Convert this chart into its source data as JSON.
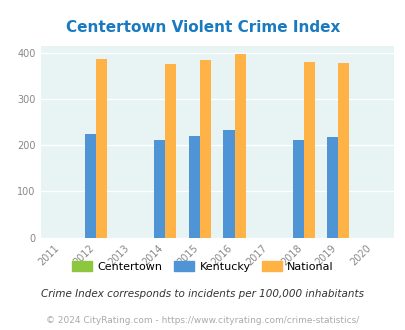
{
  "title": "Centertown Violent Crime Index",
  "all_years": [
    2011,
    2012,
    2013,
    2014,
    2015,
    2016,
    2017,
    2018,
    2019,
    2020
  ],
  "data_years": [
    2012,
    2014,
    2015,
    2016,
    2018,
    2019
  ],
  "centertown": [
    0,
    0,
    0,
    0,
    0,
    0
  ],
  "kentucky": [
    225,
    212,
    221,
    234,
    212,
    218
  ],
  "national": [
    387,
    377,
    385,
    398,
    381,
    378
  ],
  "bar_width": 0.32,
  "color_centertown": "#8dc63f",
  "color_kentucky": "#4f94d4",
  "color_national": "#ffb347",
  "bg_color": "#e8f4f4",
  "title_color": "#1a7abf",
  "ylim": [
    0,
    415
  ],
  "yticks": [
    0,
    100,
    200,
    300,
    400
  ],
  "subtitle": "Crime Index corresponds to incidents per 100,000 inhabitants",
  "footer": "© 2024 CityRating.com - https://www.cityrating.com/crime-statistics/",
  "title_fontsize": 11,
  "tick_fontsize": 7,
  "legend_fontsize": 8,
  "subtitle_fontsize": 7.5,
  "footer_fontsize": 6.5
}
